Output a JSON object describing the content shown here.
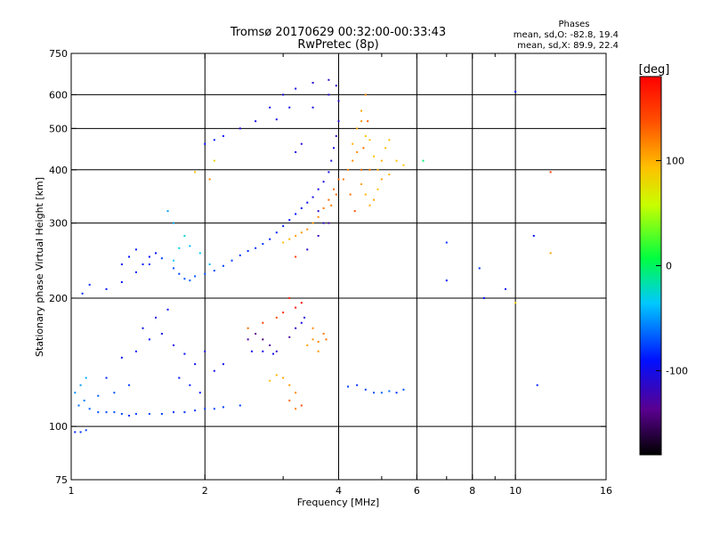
{
  "chart_data": {
    "type": "scatter",
    "title": "Tromsø 20170629 00:32:00-00:33:43",
    "subtitle": "RwPretec (8p)",
    "xlabel": "Frequency [MHz]",
    "ylabel": "Stationary phase Virtual Height [km]",
    "x_scale": "log",
    "y_scale": "log",
    "xlim": [
      1,
      16
    ],
    "ylim": [
      75,
      750
    ],
    "x_ticks": [
      1,
      2,
      4,
      6,
      8,
      10,
      16
    ],
    "x_tick_labels": [
      "1",
      "2",
      "4",
      "6",
      "8",
      "10",
      "16"
    ],
    "x_grid": [
      2,
      4,
      6,
      8,
      10
    ],
    "x_minor_ticks": [
      3,
      5,
      7,
      9
    ],
    "y_ticks": [
      75,
      100,
      200,
      300,
      400,
      500,
      600,
      750
    ],
    "y_tick_labels": [
      "75",
      "100",
      "200",
      "300",
      "400",
      "500",
      "600",
      "750"
    ],
    "y_grid": [
      100,
      200,
      300,
      400,
      500,
      600
    ],
    "grid": true,
    "legend": {
      "title": "Phases",
      "lines": [
        "mean, sd,O: -82.8, 19.4",
        "mean, sd,X:  89.9, 22.4"
      ],
      "placement": "top-right"
    },
    "colorbar": {
      "label": "[deg]",
      "range": [
        -180,
        180
      ],
      "ticks": [
        100,
        0,
        -100
      ],
      "tick_labels": [
        "100",
        "0",
        "-100"
      ],
      "placement": "right"
    },
    "series": [
      {
        "points": [
          [
            1.02,
            97,
            -95
          ],
          [
            1.05,
            97,
            -90
          ],
          [
            1.08,
            98,
            -85
          ],
          [
            1.02,
            120,
            -60
          ],
          [
            1.05,
            125,
            -55
          ],
          [
            1.08,
            130,
            -50
          ],
          [
            1.04,
            112,
            -70
          ],
          [
            1.07,
            115,
            -65
          ],
          [
            1.1,
            110,
            -75
          ],
          [
            1.15,
            108,
            -80
          ],
          [
            1.2,
            108,
            -82
          ],
          [
            1.3,
            107,
            -85
          ],
          [
            1.4,
            107,
            -85
          ],
          [
            1.5,
            107,
            -85
          ],
          [
            1.6,
            107,
            -88
          ],
          [
            1.7,
            108,
            -90
          ],
          [
            1.8,
            108,
            -92
          ],
          [
            1.9,
            109,
            -90
          ],
          [
            2.0,
            110,
            -88
          ],
          [
            2.1,
            110,
            -85
          ],
          [
            2.2,
            111,
            -85
          ],
          [
            2.4,
            112,
            -85
          ],
          [
            1.25,
            108,
            -80
          ],
          [
            1.35,
            106,
            -90
          ],
          [
            1.06,
            205,
            -90
          ],
          [
            1.1,
            215,
            -90
          ],
          [
            1.2,
            210,
            -100
          ],
          [
            1.3,
            218,
            -100
          ],
          [
            1.4,
            230,
            -95
          ],
          [
            1.5,
            240,
            -90
          ],
          [
            1.6,
            248,
            -85
          ],
          [
            1.7,
            235,
            -80
          ],
          [
            1.75,
            228,
            -85
          ],
          [
            1.8,
            222,
            -80
          ],
          [
            1.85,
            220,
            -75
          ],
          [
            1.9,
            225,
            -78
          ],
          [
            2.0,
            228,
            -80
          ],
          [
            2.1,
            232,
            -82
          ],
          [
            2.2,
            238,
            -85
          ],
          [
            2.3,
            245,
            -88
          ],
          [
            2.4,
            252,
            -88
          ],
          [
            2.5,
            258,
            -90
          ],
          [
            2.6,
            262,
            -90
          ],
          [
            2.7,
            268,
            -92
          ],
          [
            2.8,
            275,
            -95
          ],
          [
            2.9,
            285,
            -95
          ],
          [
            3.0,
            295,
            -95
          ],
          [
            3.1,
            305,
            -100
          ],
          [
            3.2,
            315,
            -100
          ],
          [
            3.3,
            325,
            -105
          ],
          [
            3.4,
            335,
            -105
          ],
          [
            3.5,
            345,
            -108
          ],
          [
            3.6,
            360,
            -110
          ],
          [
            3.7,
            375,
            -110
          ],
          [
            3.8,
            395,
            -110
          ],
          [
            3.85,
            420,
            -112
          ],
          [
            3.9,
            450,
            -112
          ],
          [
            3.95,
            480,
            -115
          ],
          [
            4.0,
            520,
            -115
          ],
          [
            4.0,
            580,
            -118
          ],
          [
            3.95,
            630,
            -120
          ],
          [
            3.8,
            600,
            -115
          ],
          [
            3.5,
            560,
            -110
          ],
          [
            1.7,
            245,
            -40
          ],
          [
            1.75,
            262,
            -35
          ],
          [
            1.8,
            280,
            -30
          ],
          [
            1.65,
            320,
            -55
          ],
          [
            1.7,
            300,
            -50
          ],
          [
            1.85,
            265,
            -45
          ],
          [
            1.95,
            255,
            -40
          ],
          [
            2.05,
            240,
            -45
          ],
          [
            1.2,
            130,
            -95
          ],
          [
            1.3,
            145,
            -100
          ],
          [
            1.4,
            150,
            -95
          ],
          [
            1.5,
            160,
            -100
          ],
          [
            1.6,
            165,
            -105
          ],
          [
            1.7,
            155,
            -110
          ],
          [
            1.8,
            148,
            -100
          ],
          [
            1.9,
            140,
            -105
          ],
          [
            2.0,
            150,
            -110
          ],
          [
            1.45,
            170,
            -105
          ],
          [
            1.55,
            180,
            -110
          ],
          [
            1.65,
            188,
            -100
          ],
          [
            1.75,
            130,
            -100
          ],
          [
            1.85,
            125,
            -95
          ],
          [
            1.95,
            120,
            -100
          ],
          [
            2.1,
            135,
            -110
          ],
          [
            2.2,
            140,
            -105
          ],
          [
            1.35,
            125,
            -85
          ],
          [
            1.25,
            120,
            -80
          ],
          [
            1.15,
            118,
            -75
          ],
          [
            2.5,
            160,
            -130
          ],
          [
            2.6,
            165,
            -140
          ],
          [
            2.7,
            160,
            -150
          ],
          [
            2.8,
            155,
            -135
          ],
          [
            2.9,
            150,
            -120
          ],
          [
            2.55,
            150,
            -105
          ],
          [
            2.7,
            150,
            -110
          ],
          [
            2.85,
            148,
            -108
          ],
          [
            3.1,
            162,
            -130
          ],
          [
            3.2,
            170,
            -120
          ],
          [
            3.3,
            175,
            -110
          ],
          [
            3.35,
            180,
            -115
          ],
          [
            2.8,
            128,
            100
          ],
          [
            2.9,
            132,
            105
          ],
          [
            3.0,
            130,
            110
          ],
          [
            3.1,
            125,
            115
          ],
          [
            3.2,
            120,
            120
          ],
          [
            3.1,
            115,
            130
          ],
          [
            3.2,
            110,
            125
          ],
          [
            3.3,
            112,
            140
          ],
          [
            3.4,
            155,
            110
          ],
          [
            3.5,
            160,
            115
          ],
          [
            3.6,
            158,
            120
          ],
          [
            3.7,
            165,
            125
          ],
          [
            3.75,
            160,
            130
          ],
          [
            3.5,
            170,
            120
          ],
          [
            3.6,
            150,
            115
          ],
          [
            3.0,
            270,
            100
          ],
          [
            3.1,
            275,
            105
          ],
          [
            3.2,
            280,
            110
          ],
          [
            3.3,
            285,
            115
          ],
          [
            3.4,
            290,
            120
          ],
          [
            3.5,
            300,
            115
          ],
          [
            3.6,
            310,
            120
          ],
          [
            3.7,
            325,
            125
          ],
          [
            3.8,
            340,
            130
          ],
          [
            3.9,
            360,
            130
          ],
          [
            4.0,
            380,
            130
          ],
          [
            3.85,
            330,
            125
          ],
          [
            3.95,
            350,
            130
          ],
          [
            4.3,
            460,
            105
          ],
          [
            4.4,
            500,
            110
          ],
          [
            4.5,
            550,
            110
          ],
          [
            4.6,
            600,
            120
          ],
          [
            4.5,
            520,
            115
          ],
          [
            4.4,
            440,
            120
          ],
          [
            4.3,
            420,
            120
          ],
          [
            4.6,
            480,
            100
          ],
          [
            4.7,
            470,
            100
          ],
          [
            4.8,
            430,
            100
          ],
          [
            4.9,
            400,
            105
          ],
          [
            5.0,
            380,
            110
          ],
          [
            5.2,
            390,
            105
          ],
          [
            5.4,
            420,
            100
          ],
          [
            5.6,
            410,
            100
          ],
          [
            4.5,
            370,
            110
          ],
          [
            4.6,
            350,
            105
          ],
          [
            4.7,
            330,
            105
          ],
          [
            4.8,
            340,
            110
          ],
          [
            4.9,
            360,
            100
          ],
          [
            5.0,
            420,
            105
          ],
          [
            5.1,
            450,
            100
          ],
          [
            5.2,
            470,
            100
          ],
          [
            4.2,
            400,
            120
          ],
          [
            4.1,
            380,
            125
          ],
          [
            4.25,
            350,
            130
          ],
          [
            4.35,
            320,
            140
          ],
          [
            4.5,
            400,
            130
          ],
          [
            4.7,
            400,
            125
          ],
          [
            4.55,
            450,
            130
          ],
          [
            4.65,
            520,
            135
          ],
          [
            4.4,
            125,
            -90
          ],
          [
            4.6,
            122,
            -85
          ],
          [
            4.8,
            120,
            -80
          ],
          [
            5.0,
            120,
            -75
          ],
          [
            5.2,
            121,
            -70
          ],
          [
            5.4,
            120,
            -90
          ],
          [
            5.6,
            122,
            -80
          ],
          [
            4.2,
            124,
            -85
          ],
          [
            6.2,
            420,
            -10
          ],
          [
            7.0,
            270,
            -90
          ],
          [
            7.0,
            220,
            -100
          ],
          [
            8.5,
            200,
            -100
          ],
          [
            10.0,
            610,
            -100
          ],
          [
            11.0,
            280,
            -100
          ],
          [
            11.2,
            125,
            -95
          ],
          [
            12.0,
            395,
            150
          ],
          [
            12.0,
            255,
            110
          ],
          [
            8.3,
            235,
            -90
          ],
          [
            10.0,
            195,
            90
          ],
          [
            9.5,
            210,
            -105
          ],
          [
            2.0,
            460,
            -100
          ],
          [
            2.1,
            470,
            -95
          ],
          [
            2.2,
            480,
            -105
          ],
          [
            2.4,
            500,
            -110
          ],
          [
            2.6,
            520,
            -110
          ],
          [
            2.8,
            560,
            -105
          ],
          [
            3.0,
            600,
            -110
          ],
          [
            3.2,
            620,
            -110
          ],
          [
            3.5,
            640,
            -115
          ],
          [
            3.8,
            650,
            -120
          ],
          [
            2.9,
            525,
            -110
          ],
          [
            3.1,
            560,
            -105
          ],
          [
            1.9,
            395,
            100
          ],
          [
            2.05,
            380,
            120
          ],
          [
            2.1,
            420,
            90
          ],
          [
            1.5,
            250,
            -100
          ],
          [
            1.55,
            255,
            -105
          ],
          [
            1.45,
            240,
            -100
          ],
          [
            1.4,
            260,
            -95
          ],
          [
            1.35,
            250,
            -100
          ],
          [
            1.3,
            240,
            -105
          ],
          [
            2.5,
            170,
            130
          ],
          [
            2.7,
            175,
            150
          ],
          [
            2.9,
            180,
            140
          ],
          [
            3.0,
            185,
            160
          ],
          [
            3.2,
            190,
            170
          ],
          [
            3.3,
            195,
            175
          ],
          [
            3.1,
            200,
            160
          ],
          [
            3.2,
            250,
            150
          ],
          [
            3.4,
            260,
            -120
          ],
          [
            3.6,
            280,
            -125
          ],
          [
            3.8,
            300,
            -130
          ],
          [
            3.6,
            320,
            -120
          ],
          [
            3.7,
            300,
            -115
          ],
          [
            3.2,
            440,
            -110
          ],
          [
            3.3,
            460,
            -115
          ]
        ]
      }
    ]
  }
}
